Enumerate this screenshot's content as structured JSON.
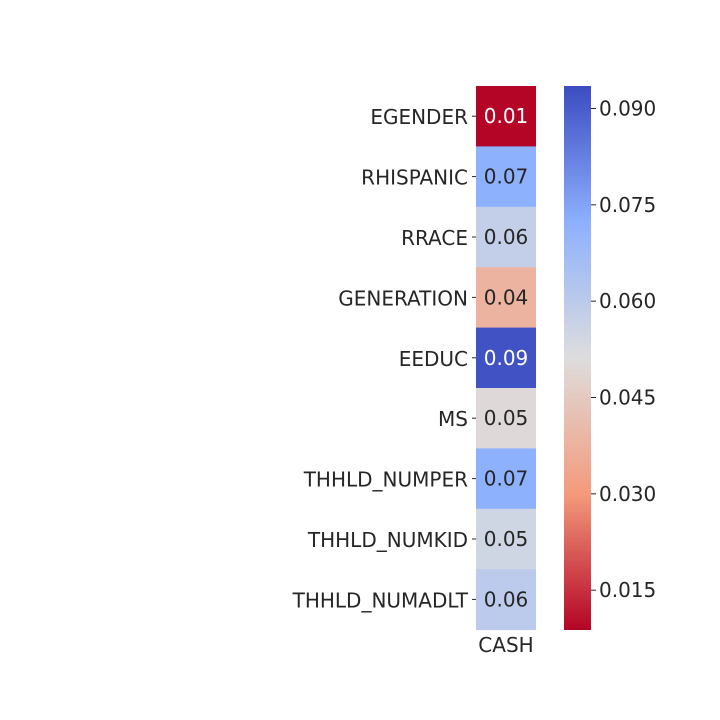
{
  "chart_data": {
    "type": "heatmap",
    "title": "",
    "xlabel": "",
    "ylabel": "",
    "columns": [
      "CASH"
    ],
    "rows": [
      "EGENDER",
      "RHISPANIC",
      "RRACE",
      "GENERATION",
      "EEDUC",
      "MS",
      "THHLD_NUMPER",
      "THHLD_NUMKID",
      "THHLD_NUMADLT"
    ],
    "values": [
      0.009,
      0.072,
      0.058,
      0.038,
      0.092,
      0.05,
      0.072,
      0.055,
      0.06
    ],
    "annotations": [
      "0.01",
      "0.07",
      "0.06",
      "0.04",
      "0.09",
      "0.05",
      "0.07",
      "0.05",
      "0.06"
    ],
    "colormap": "coolwarm_r",
    "colorbar": {
      "range": [
        0.0088,
        0.0935
      ],
      "ticks": [
        0.015,
        0.03,
        0.045,
        0.06,
        0.075,
        0.09
      ],
      "tick_labels": [
        "0.015",
        "0.030",
        "0.045",
        "0.060",
        "0.075",
        "0.090"
      ]
    },
    "colors": {
      "low": "#b40426",
      "mid": "#dddddd",
      "high": "#3b4cc0",
      "text_dark": "#262626",
      "text_light": "#ffffff"
    }
  }
}
